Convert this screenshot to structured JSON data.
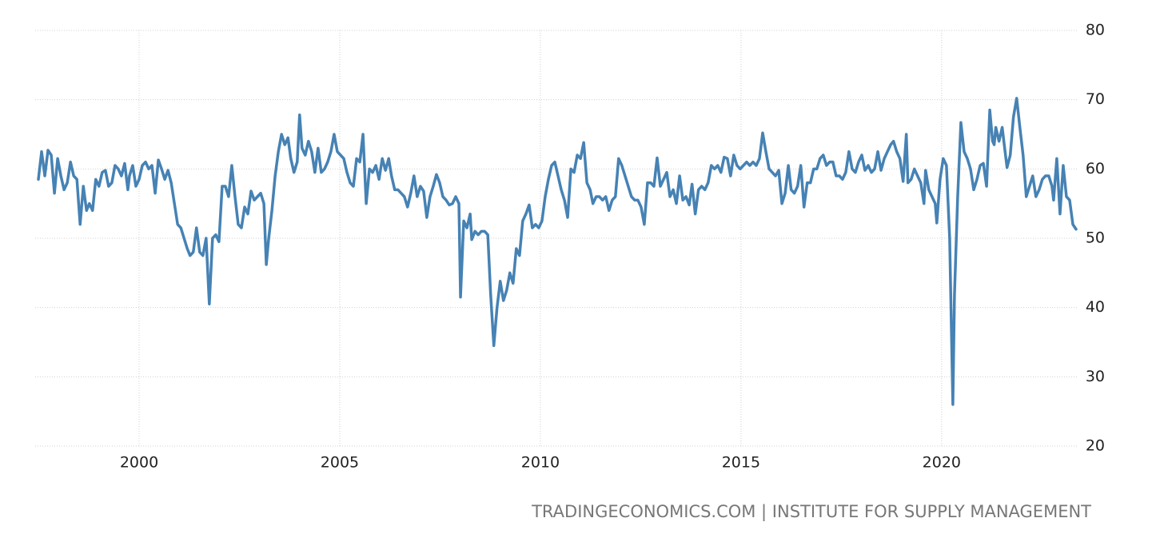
{
  "chart_data": {
    "type": "line",
    "source": "TRADINGECONOMICS.COM | INSTITUTE FOR SUPPLY MANAGEMENT",
    "xlim": [
      1997.41,
      2023.39
    ],
    "xticks": [
      2000,
      2005,
      2010,
      2015,
      2020
    ],
    "ylim": [
      20,
      80
    ],
    "yticks": [
      20,
      30,
      40,
      50,
      60,
      70,
      80
    ],
    "grid": true,
    "x": [
      1997.49,
      1997.57,
      1997.65,
      1997.73,
      1997.81,
      1997.89,
      1997.97,
      1998.05,
      1998.13,
      1998.21,
      1998.29,
      1998.37,
      1998.45,
      1998.53,
      1998.61,
      1998.69,
      1998.76,
      1998.84,
      1998.92,
      1999.0,
      1999.08,
      1999.16,
      1999.24,
      1999.32,
      1999.4,
      1999.48,
      1999.56,
      1999.64,
      1999.72,
      1999.76,
      1999.84,
      1999.92,
      2000.0,
      2000.08,
      2000.16,
      2000.24,
      2000.32,
      2000.4,
      2000.48,
      2000.56,
      2000.64,
      2000.72,
      2000.8,
      2000.88,
      2000.96,
      2001.04,
      2001.12,
      2001.2,
      2001.27,
      2001.35,
      2001.43,
      2001.51,
      2001.59,
      2001.67,
      2001.75,
      2001.83,
      2001.91,
      2001.99,
      2002.07,
      2002.15,
      2002.23,
      2002.31,
      2002.39,
      2002.47,
      2002.55,
      2002.63,
      2002.71,
      2002.79,
      2002.87,
      2002.95,
      2003.03,
      2003.11,
      2003.17,
      2003.23,
      2003.31,
      2003.39,
      2003.47,
      2003.55,
      2003.63,
      2003.71,
      2003.78,
      2003.86,
      2003.94,
      2004.0,
      2004.06,
      2004.14,
      2004.22,
      2004.3,
      2004.38,
      2004.46,
      2004.54,
      2004.62,
      2004.7,
      2004.78,
      2004.86,
      2004.94,
      2005.02,
      2005.1,
      2005.18,
      2005.26,
      2005.34,
      2005.42,
      2005.5,
      2005.58,
      2005.66,
      2005.74,
      2005.82,
      2005.9,
      2005.98,
      2006.06,
      2006.14,
      2006.22,
      2006.29,
      2006.37,
      2006.45,
      2006.53,
      2006.61,
      2006.69,
      2006.77,
      2006.85,
      2006.93,
      2007.01,
      2007.09,
      2007.17,
      2007.25,
      2007.33,
      2007.41,
      2007.49,
      2007.57,
      2007.65,
      2007.73,
      2007.81,
      2007.89,
      2007.97,
      2008.01,
      2008.09,
      2008.17,
      2008.25,
      2008.29,
      2008.37,
      2008.45,
      2008.53,
      2008.61,
      2008.69,
      2008.76,
      2008.84,
      2008.92,
      2009.0,
      2009.08,
      2009.16,
      2009.24,
      2009.32,
      2009.4,
      2009.48,
      2009.56,
      2009.64,
      2009.72,
      2009.8,
      2009.88,
      2009.96,
      2010.04,
      2010.12,
      2010.2,
      2010.28,
      2010.36,
      2010.44,
      2010.52,
      2010.6,
      2010.68,
      2010.76,
      2010.84,
      2010.92,
      2011.0,
      2011.08,
      2011.16,
      2011.24,
      2011.31,
      2011.39,
      2011.47,
      2011.55,
      2011.63,
      2011.71,
      2011.79,
      2011.87,
      2011.95,
      2012.03,
      2012.11,
      2012.19,
      2012.27,
      2012.35,
      2012.43,
      2012.51,
      2012.59,
      2012.67,
      2012.75,
      2012.83,
      2012.91,
      2012.99,
      2013.07,
      2013.15,
      2013.23,
      2013.31,
      2013.39,
      2013.47,
      2013.55,
      2013.63,
      2013.71,
      2013.78,
      2013.86,
      2013.94,
      2014.02,
      2014.1,
      2014.18,
      2014.26,
      2014.34,
      2014.42,
      2014.5,
      2014.58,
      2014.66,
      2014.74,
      2014.82,
      2014.9,
      2014.98,
      2015.06,
      2015.14,
      2015.22,
      2015.3,
      2015.38,
      2015.46,
      2015.54,
      2015.62,
      2015.7,
      2015.78,
      2015.86,
      2015.94,
      2016.02,
      2016.1,
      2016.18,
      2016.25,
      2016.33,
      2016.41,
      2016.49,
      2016.57,
      2016.65,
      2016.73,
      2016.81,
      2016.89,
      2016.97,
      2017.05,
      2017.13,
      2017.21,
      2017.29,
      2017.37,
      2017.45,
      2017.53,
      2017.61,
      2017.69,
      2017.77,
      2017.85,
      2017.93,
      2018.01,
      2018.09,
      2018.17,
      2018.25,
      2018.33,
      2018.41,
      2018.49,
      2018.57,
      2018.65,
      2018.73,
      2018.8,
      2018.88,
      2018.96,
      2019.04,
      2019.12,
      2019.16,
      2019.24,
      2019.32,
      2019.4,
      2019.48,
      2019.56,
      2019.6,
      2019.68,
      2019.76,
      2019.84,
      2019.88,
      2019.96,
      2020.04,
      2020.12,
      2020.2,
      2020.28,
      2020.32,
      2020.4,
      2020.48,
      2020.56,
      2020.64,
      2020.72,
      2020.8,
      2020.88,
      2020.96,
      2021.04,
      2021.12,
      2021.2,
      2021.27,
      2021.31,
      2021.35,
      2021.43,
      2021.51,
      2021.55,
      2021.63,
      2021.71,
      2021.79,
      2021.87,
      2021.95,
      2022.03,
      2022.11,
      2022.19,
      2022.27,
      2022.35,
      2022.43,
      2022.51,
      2022.59,
      2022.67,
      2022.75,
      2022.79,
      2022.87,
      2022.95,
      2023.03,
      2023.11,
      2023.19,
      2023.27,
      2023.35
    ],
    "series": [
      {
        "color": "#4682b4",
        "values": [
          58.5,
          62.5,
          59,
          62.7,
          62,
          56.5,
          61.5,
          59,
          57,
          58,
          61,
          59,
          58.5,
          52,
          57.5,
          54,
          55,
          54,
          58.5,
          57.5,
          59.5,
          59.8,
          57.5,
          58,
          60.5,
          60,
          59,
          60.8,
          57,
          59,
          60.5,
          57.5,
          58.5,
          60.5,
          61,
          60,
          60.5,
          56.5,
          61.3,
          60,
          58.5,
          59.8,
          58,
          55,
          52,
          51.5,
          50,
          48.5,
          47.5,
          48,
          51.5,
          48,
          47.5,
          50,
          40.5,
          50,
          50.5,
          49.5,
          57.5,
          57.5,
          56,
          60.5,
          56,
          52,
          51.5,
          54.5,
          53.5,
          56.8,
          55.5,
          56,
          56.5,
          55,
          46.2,
          50,
          54,
          59,
          62.5,
          65,
          63.5,
          64.5,
          61.5,
          59.5,
          61,
          67.8,
          63,
          62,
          64,
          62.5,
          59.5,
          63,
          59.5,
          60,
          61,
          62.5,
          65,
          62.5,
          62,
          61.5,
          59.5,
          58,
          57.5,
          61.5,
          61,
          65,
          55,
          60,
          59.5,
          60.5,
          58.5,
          61.5,
          59.8,
          61.5,
          59,
          57,
          57,
          56.5,
          56,
          54.5,
          56.5,
          59,
          56,
          57.5,
          56.8,
          53,
          56,
          57.5,
          59.2,
          58,
          56,
          55.5,
          54.8,
          55,
          56,
          55,
          41.5,
          52.5,
          51.5,
          53.5,
          49.8,
          51,
          50.5,
          51,
          51,
          50.5,
          42,
          34.5,
          40,
          43.8,
          41,
          42.5,
          45,
          43.5,
          48.5,
          47.5,
          52.5,
          53.5,
          54.8,
          51.5,
          52,
          51.5,
          52.5,
          56,
          58.5,
          60.5,
          61,
          59,
          57,
          55.5,
          53,
          60,
          59.5,
          62,
          61.5,
          63.8,
          58,
          57,
          55,
          56,
          56,
          55.5,
          56,
          54,
          55.5,
          56,
          61.5,
          60.5,
          59,
          57.5,
          56,
          55.5,
          55.5,
          54.5,
          52,
          58,
          58,
          57.5,
          61.6,
          57.5,
          58.5,
          59.5,
          56,
          57,
          55,
          59,
          55.5,
          56,
          54.8,
          57.8,
          53.5,
          57,
          57.5,
          57,
          58,
          60.5,
          60,
          60.5,
          59.5,
          61.7,
          61.5,
          59,
          62,
          60.5,
          60,
          60.5,
          61,
          60.5,
          61,
          60.5,
          61.5,
          65.2,
          62.5,
          60,
          59.5,
          59,
          59.8,
          55,
          56.5,
          60.5,
          57,
          56.5,
          57.5,
          60.5,
          54.5,
          58,
          58,
          60,
          60,
          61.5,
          62,
          60.5,
          61,
          61,
          59,
          59,
          58.5,
          59.5,
          62.5,
          60,
          59.5,
          61,
          62,
          59.8,
          60.5,
          59.5,
          60,
          62.5,
          59.8,
          61.5,
          62.5,
          63.5,
          64,
          62.5,
          61.5,
          58.2,
          65,
          58,
          58.5,
          60,
          59,
          58,
          55,
          59.8,
          57,
          56,
          55,
          52.2,
          58.5,
          61.5,
          60.5,
          50,
          26,
          41.8,
          56,
          66.7,
          62.5,
          61.5,
          60,
          57,
          58.5,
          60.5,
          60.8,
          57.5,
          68.5,
          64,
          63.5,
          66,
          64,
          66,
          64,
          60.2,
          62,
          67.5,
          70.2,
          66,
          62,
          56,
          57.5,
          59,
          56,
          57,
          58.5,
          59,
          59,
          57.5,
          55.5,
          61.5,
          53.5,
          60.5,
          56,
          55.5,
          52,
          51.3
        ]
      }
    ]
  }
}
